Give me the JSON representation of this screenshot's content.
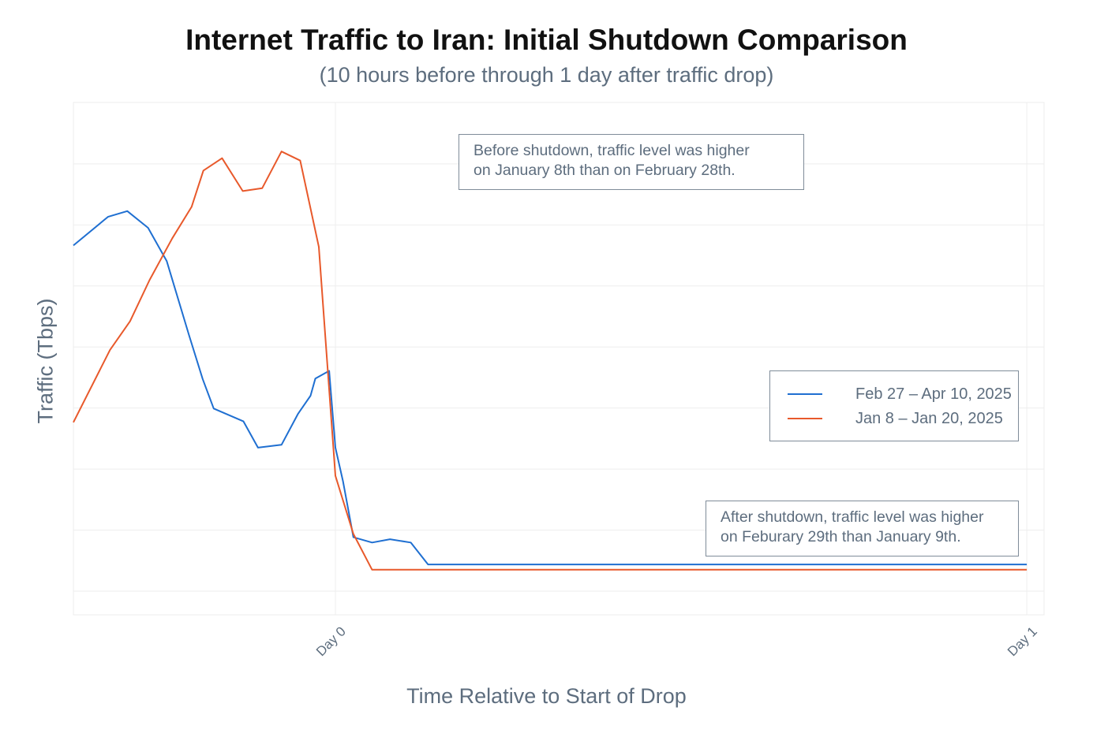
{
  "chart_data": {
    "type": "line",
    "title": "Internet Traffic to Iran: Initial Shutdown Comparison",
    "subtitle": "(10 hours before through 1 day after traffic drop)",
    "xlabel": "Time Relative to Start of Drop",
    "ylabel": "Traffic (Tbps)",
    "x_unit": "days",
    "xlim": [
      -0.379,
      1.025
    ],
    "ylim": [
      0,
      100
    ],
    "x_ticks": [
      {
        "value": 0,
        "label": "Day 0"
      },
      {
        "value": 1,
        "label": "Day 1"
      }
    ],
    "y_tick_labels_shown": false,
    "grid": true,
    "legend_position": "right",
    "series": [
      {
        "name": "Feb 27 – Apr 10, 2025",
        "color": "#1f6fd1",
        "x": [
          -0.379,
          -0.329,
          -0.301,
          -0.271,
          -0.244,
          -0.212,
          -0.192,
          -0.176,
          -0.133,
          -0.112,
          -0.078,
          -0.054,
          -0.036,
          -0.029,
          -0.009,
          0,
          0.011,
          0.026,
          0.053,
          0.079,
          0.109,
          0.134,
          0.163,
          1
        ],
        "y": [
          72.5,
          78.5,
          79.7,
          76.2,
          69.2,
          53.8,
          44.5,
          38.3,
          35.6,
          30.1,
          30.7,
          37.2,
          41.0,
          44.6,
          46.2,
          30.1,
          23.0,
          11.3,
          10.2,
          10.9,
          10.2,
          5.6,
          5.6,
          5.6
        ]
      },
      {
        "name": "Jan 8 – Jan 20, 2025",
        "color": "#e8592b",
        "x": [
          -0.379,
          -0.326,
          -0.297,
          -0.269,
          -0.236,
          -0.208,
          -0.191,
          -0.164,
          -0.134,
          -0.106,
          -0.078,
          -0.051,
          -0.024,
          0,
          0.026,
          0.053,
          0.079,
          1
        ],
        "y": [
          35.4,
          50.6,
          56.6,
          65.2,
          74.0,
          80.6,
          88.2,
          90.8,
          83.9,
          84.5,
          92.2,
          90.3,
          72.2,
          24.2,
          12.0,
          4.5,
          4.5,
          4.5
        ]
      }
    ],
    "annotations": [
      {
        "id": "before",
        "lines": [
          "Before shutdown, traffic level was higher",
          "on January 8th than on February 28th."
        ]
      },
      {
        "id": "after",
        "lines": [
          "After shutdown, traffic level was higher",
          "on Feburary 29th than January 9th."
        ]
      }
    ]
  }
}
